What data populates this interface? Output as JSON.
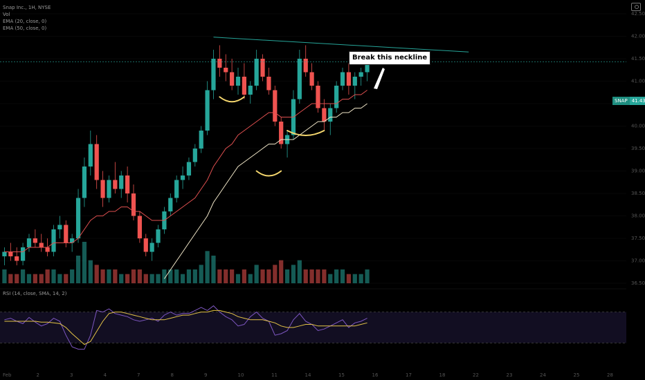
{
  "legend": {
    "line1": "Snap Inc., 1H, NYSE",
    "line2": "Vol",
    "line3": "EMA (20, close, 0)",
    "line4": "EMA (50, close, 0)",
    "rsi": "RSI (14, close, SMA, 14, 2)"
  },
  "price_tag": {
    "symbol": "SNAP",
    "price": "41.43"
  },
  "annotation": {
    "text": "Break this neckline"
  },
  "colors": {
    "up": "#26a69a",
    "down": "#ef5350",
    "ema_fast": "#e05050",
    "ema_slow": "#f0e6c8",
    "neckline": "#26a69a",
    "rsi": "#7e57c2",
    "rsi_ma": "#e6c547",
    "highlight": "#f5d76e"
  },
  "chart_data": {
    "type": "candlestick",
    "y_ticks": [
      "42.50",
      "42.00",
      "41.50",
      "41.00",
      "40.50",
      "40.00",
      "39.50",
      "39.00",
      "38.50",
      "38.00",
      "37.50",
      "37.00",
      "36.50"
    ],
    "y_range": [
      36.5,
      42.5
    ],
    "x_ticks": [
      "Feb",
      "2",
      "3",
      "4",
      "7",
      "8",
      "9",
      "10",
      "11",
      "14",
      "15",
      "16",
      "17",
      "18",
      "22",
      "23",
      "24",
      "25",
      "28"
    ],
    "candles": [
      [
        37.1,
        37.3,
        36.9,
        37.2
      ],
      [
        37.2,
        37.4,
        37.0,
        37.1
      ],
      [
        37.1,
        37.3,
        36.9,
        37.0
      ],
      [
        37.0,
        37.4,
        36.9,
        37.3
      ],
      [
        37.3,
        37.6,
        37.2,
        37.5
      ],
      [
        37.5,
        37.7,
        37.3,
        37.4
      ],
      [
        37.4,
        37.6,
        37.2,
        37.3
      ],
      [
        37.3,
        37.5,
        37.1,
        37.2
      ],
      [
        37.2,
        37.8,
        37.1,
        37.7
      ],
      [
        37.7,
        38.0,
        37.5,
        37.8
      ],
      [
        37.8,
        37.9,
        37.3,
        37.4
      ],
      [
        37.4,
        37.6,
        37.2,
        37.5
      ],
      [
        37.5,
        38.6,
        37.4,
        38.4
      ],
      [
        38.4,
        39.3,
        38.2,
        39.1
      ],
      [
        39.1,
        39.9,
        38.9,
        39.6
      ],
      [
        39.6,
        39.8,
        38.6,
        38.8
      ],
      [
        38.8,
        39.0,
        38.2,
        38.4
      ],
      [
        38.4,
        38.9,
        38.3,
        38.8
      ],
      [
        38.8,
        39.2,
        38.5,
        38.6
      ],
      [
        38.6,
        39.0,
        38.4,
        38.9
      ],
      [
        38.9,
        39.1,
        38.3,
        38.5
      ],
      [
        38.5,
        38.7,
        37.9,
        38.0
      ],
      [
        38.0,
        38.1,
        37.4,
        37.5
      ],
      [
        37.5,
        37.6,
        37.1,
        37.2
      ],
      [
        37.2,
        37.5,
        37.0,
        37.4
      ],
      [
        37.4,
        37.8,
        37.3,
        37.7
      ],
      [
        37.7,
        38.2,
        37.6,
        38.1
      ],
      [
        38.1,
        38.5,
        38.0,
        38.4
      ],
      [
        38.4,
        38.9,
        38.3,
        38.8
      ],
      [
        38.8,
        39.1,
        38.6,
        38.9
      ],
      [
        38.9,
        39.3,
        38.8,
        39.2
      ],
      [
        39.2,
        39.6,
        39.1,
        39.5
      ],
      [
        39.5,
        40.0,
        39.4,
        39.9
      ],
      [
        39.9,
        41.0,
        39.8,
        40.8
      ],
      [
        40.8,
        41.7,
        40.6,
        41.5
      ],
      [
        41.5,
        41.8,
        41.1,
        41.3
      ],
      [
        41.3,
        41.6,
        41.0,
        41.2
      ],
      [
        41.2,
        41.5,
        40.8,
        40.9
      ],
      [
        40.9,
        41.3,
        40.7,
        41.1
      ],
      [
        41.1,
        41.4,
        40.6,
        40.7
      ],
      [
        40.7,
        41.0,
        40.5,
        40.9
      ],
      [
        40.9,
        41.7,
        40.8,
        41.5
      ],
      [
        41.5,
        41.6,
        41.0,
        41.1
      ],
      [
        41.1,
        41.3,
        40.7,
        40.8
      ],
      [
        40.8,
        40.9,
        40.0,
        40.1
      ],
      [
        40.1,
        40.2,
        39.5,
        39.6
      ],
      [
        39.6,
        39.9,
        39.3,
        39.8
      ],
      [
        39.8,
        40.8,
        39.7,
        40.6
      ],
      [
        40.6,
        41.7,
        40.5,
        41.5
      ],
      [
        41.5,
        41.8,
        41.1,
        41.2
      ],
      [
        41.2,
        41.4,
        40.8,
        40.9
      ],
      [
        40.9,
        41.0,
        40.3,
        40.4
      ],
      [
        40.4,
        40.6,
        39.9,
        40.1
      ],
      [
        40.1,
        40.5,
        39.8,
        40.4
      ],
      [
        40.4,
        41.0,
        40.3,
        40.9
      ],
      [
        40.9,
        41.3,
        40.8,
        41.2
      ],
      [
        41.2,
        41.4,
        40.7,
        40.9
      ],
      [
        40.9,
        41.2,
        40.6,
        41.1
      ],
      [
        41.1,
        41.3,
        40.9,
        41.2
      ],
      [
        41.2,
        41.5,
        41.0,
        41.43
      ]
    ],
    "volume": [
      3,
      2,
      2,
      3,
      2,
      2,
      2,
      3,
      3,
      2,
      2,
      3,
      6,
      9,
      5,
      4,
      3,
      3,
      3,
      2,
      2,
      3,
      3,
      2,
      2,
      2,
      3,
      3,
      3,
      2,
      3,
      3,
      4,
      7,
      6,
      3,
      3,
      3,
      2,
      3,
      2,
      4,
      3,
      3,
      4,
      5,
      3,
      4,
      5,
      3,
      3,
      3,
      3,
      2,
      3,
      3,
      2,
      2,
      2,
      3
    ],
    "ema_fast": [
      37.2,
      37.2,
      37.2,
      37.2,
      37.3,
      37.3,
      37.3,
      37.3,
      37.4,
      37.4,
      37.4,
      37.4,
      37.5,
      37.7,
      37.9,
      38.0,
      38.0,
      38.1,
      38.1,
      38.2,
      38.2,
      38.1,
      38.1,
      38.0,
      37.9,
      37.9,
      37.9,
      38.0,
      38.1,
      38.2,
      38.3,
      38.4,
      38.6,
      38.8,
      39.1,
      39.3,
      39.5,
      39.6,
      39.8,
      39.9,
      40.0,
      40.1,
      40.2,
      40.3,
      40.3,
      40.2,
      40.2,
      40.2,
      40.3,
      40.4,
      40.5,
      40.5,
      40.5,
      40.5,
      40.5,
      40.6,
      40.6,
      40.7,
      40.7,
      40.8
    ],
    "ema_slow": [
      null,
      null,
      null,
      null,
      null,
      null,
      null,
      null,
      null,
      null,
      null,
      null,
      null,
      null,
      null,
      null,
      null,
      null,
      null,
      null,
      null,
      null,
      null,
      null,
      null,
      null,
      36.6,
      36.8,
      37.0,
      37.2,
      37.4,
      37.6,
      37.8,
      38.0,
      38.3,
      38.5,
      38.7,
      38.9,
      39.1,
      39.2,
      39.3,
      39.4,
      39.5,
      39.6,
      39.6,
      39.7,
      39.7,
      39.7,
      39.8,
      39.9,
      40.0,
      40.1,
      40.1,
      40.2,
      40.2,
      40.3,
      40.3,
      40.4,
      40.4,
      40.5
    ],
    "neckline": {
      "x1": 34,
      "y1": 41.98,
      "x2": 62,
      "y2": 41.65
    },
    "rsi": [
      60,
      62,
      58,
      55,
      63,
      57,
      52,
      55,
      62,
      58,
      40,
      25,
      22,
      22,
      40,
      72,
      70,
      74,
      68,
      66,
      64,
      60,
      58,
      60,
      62,
      58,
      66,
      70,
      66,
      68,
      68,
      72,
      76,
      72,
      78,
      70,
      64,
      60,
      52,
      54,
      64,
      70,
      62,
      58,
      40,
      42,
      46,
      60,
      68,
      58,
      54,
      46,
      48,
      52,
      56,
      60,
      50,
      56,
      58,
      62
    ],
    "rsi_ma": [
      58,
      58,
      58,
      58,
      58,
      58,
      57,
      57,
      56,
      55,
      50,
      42,
      35,
      28,
      32,
      45,
      58,
      68,
      70,
      70,
      68,
      66,
      64,
      62,
      60,
      60,
      60,
      62,
      64,
      66,
      66,
      68,
      70,
      70,
      72,
      72,
      70,
      68,
      64,
      62,
      60,
      60,
      60,
      58,
      56,
      52,
      50,
      50,
      52,
      54,
      54,
      52,
      52,
      52,
      52,
      52,
      52,
      52,
      54,
      56
    ],
    "rsi_levels": [
      70,
      30
    ]
  }
}
